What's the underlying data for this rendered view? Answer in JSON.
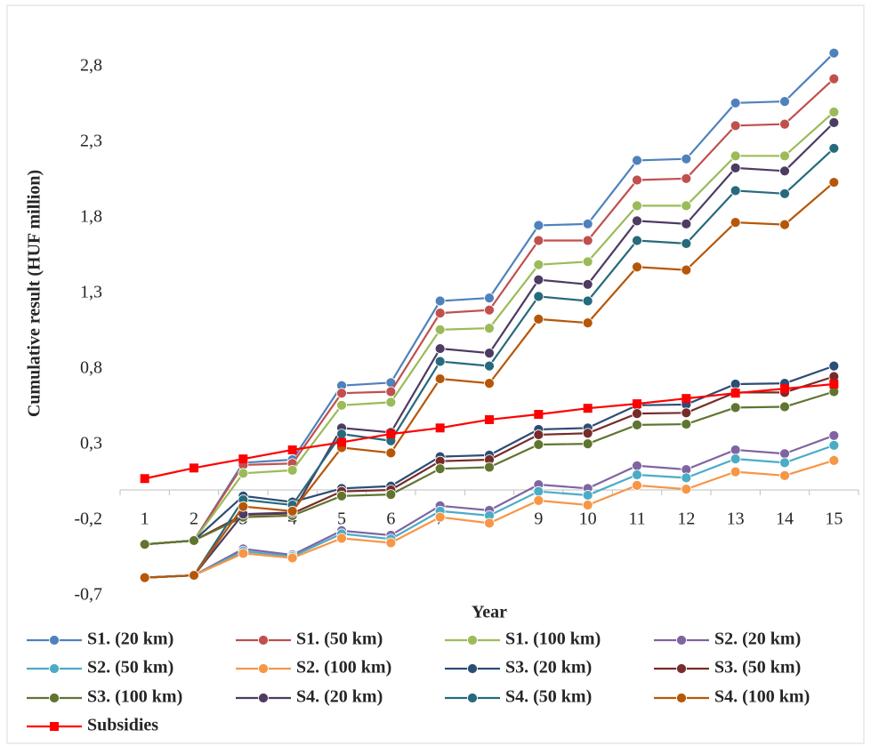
{
  "chart_data": {
    "type": "line",
    "x_label": "Year",
    "y_label": "Cumulative result (HUF million)",
    "categories": [
      "1",
      "2",
      "3",
      "4",
      "5",
      "6",
      "7",
      "8",
      "9",
      "10",
      "11",
      "12",
      "13",
      "14",
      "15"
    ],
    "ylim": [
      -0.7,
      3.1
    ],
    "yticks": [
      {
        "value": -0.7,
        "label": "-0,7"
      },
      {
        "value": -0.2,
        "label": "-0,2"
      },
      {
        "value": 0.3,
        "label": "0,3"
      },
      {
        "value": 0.8,
        "label": "0,8"
      },
      {
        "value": 1.3,
        "label": "1,3"
      },
      {
        "value": 1.8,
        "label": "1,8"
      },
      {
        "value": 2.3,
        "label": "2,3"
      },
      {
        "value": 2.8,
        "label": "2,8"
      }
    ],
    "grid": false,
    "legend": "bottom",
    "series": [
      {
        "name": "S1. (20 km)",
        "color": "#4f81bd",
        "marker": "circle",
        "values": [
          -0.36,
          -0.335,
          0.18,
          0.2,
          0.69,
          0.71,
          1.25,
          1.27,
          1.75,
          1.76,
          2.18,
          2.19,
          2.56,
          2.57,
          2.89
        ]
      },
      {
        "name": "S1. (50 km)",
        "color": "#c0504d",
        "marker": "circle",
        "values": [
          -0.36,
          -0.335,
          0.165,
          0.175,
          0.64,
          0.65,
          1.17,
          1.19,
          1.65,
          1.65,
          2.05,
          2.06,
          2.41,
          2.42,
          2.72
        ]
      },
      {
        "name": "S1. (100 km)",
        "color": "#9bbb59",
        "marker": "circle",
        "values": [
          -0.36,
          -0.335,
          0.11,
          0.13,
          0.56,
          0.58,
          1.06,
          1.07,
          1.49,
          1.51,
          1.88,
          1.88,
          2.21,
          2.21,
          2.5
        ]
      },
      {
        "name": "S2. (20 km)",
        "color": "#8064a2",
        "marker": "circle",
        "values": [
          -0.58,
          -0.565,
          -0.39,
          -0.43,
          -0.27,
          -0.3,
          -0.105,
          -0.135,
          0.035,
          0.01,
          0.16,
          0.135,
          0.265,
          0.24,
          0.36
        ]
      },
      {
        "name": "S2. (50 km)",
        "color": "#4bacc6",
        "marker": "circle",
        "values": [
          -0.58,
          -0.565,
          -0.405,
          -0.44,
          -0.29,
          -0.325,
          -0.14,
          -0.17,
          -0.01,
          -0.035,
          0.1,
          0.08,
          0.205,
          0.18,
          0.295
        ]
      },
      {
        "name": "S2. (100 km)",
        "color": "#f79646",
        "marker": "circle",
        "values": [
          -0.58,
          -0.565,
          -0.42,
          -0.45,
          -0.32,
          -0.35,
          -0.18,
          -0.22,
          -0.07,
          -0.1,
          0.03,
          0.005,
          0.12,
          0.095,
          0.195
        ]
      },
      {
        "name": "S3. (20 km)",
        "color": "#2c4d75",
        "marker": "circle",
        "values": [
          -0.36,
          -0.335,
          -0.04,
          -0.08,
          0.01,
          0.025,
          0.22,
          0.23,
          0.4,
          0.41,
          0.56,
          0.565,
          0.7,
          0.705,
          0.82
        ]
      },
      {
        "name": "S3. (50 km)",
        "color": "#772c2a",
        "marker": "circle",
        "values": [
          -0.36,
          -0.335,
          -0.165,
          -0.155,
          -0.01,
          0.0,
          0.19,
          0.2,
          0.365,
          0.375,
          0.505,
          0.51,
          0.645,
          0.645,
          0.75
        ]
      },
      {
        "name": "S3. (100 km)",
        "color": "#5f7530",
        "marker": "circle",
        "values": [
          -0.36,
          -0.335,
          -0.18,
          -0.17,
          -0.04,
          -0.03,
          0.14,
          0.15,
          0.3,
          0.305,
          0.43,
          0.435,
          0.545,
          0.55,
          0.65
        ]
      },
      {
        "name": "S4. (20 km)",
        "color": "#4d3b62",
        "marker": "circle",
        "values": [
          -0.58,
          -0.565,
          -0.16,
          -0.15,
          0.41,
          0.38,
          0.935,
          0.905,
          1.39,
          1.36,
          1.78,
          1.76,
          2.13,
          2.11,
          2.43
        ]
      },
      {
        "name": "S4. (50 km)",
        "color": "#276a7c",
        "marker": "circle",
        "values": [
          -0.58,
          -0.565,
          -0.065,
          -0.1,
          0.37,
          0.325,
          0.85,
          0.82,
          1.28,
          1.25,
          1.65,
          1.63,
          1.98,
          1.96,
          2.26
        ]
      },
      {
        "name": "S4. (100 km)",
        "color": "#b65708",
        "marker": "circle",
        "values": [
          -0.58,
          -0.565,
          -0.11,
          -0.14,
          0.28,
          0.245,
          0.735,
          0.705,
          1.13,
          1.105,
          1.475,
          1.455,
          1.77,
          1.755,
          2.035
        ]
      },
      {
        "name": "Subsidies",
        "color": "#ff0000",
        "marker": "square",
        "values": [
          0.075,
          0.145,
          0.205,
          0.265,
          0.315,
          0.37,
          0.41,
          0.465,
          0.5,
          0.54,
          0.57,
          0.605,
          0.64,
          0.67,
          0.7
        ]
      }
    ]
  }
}
